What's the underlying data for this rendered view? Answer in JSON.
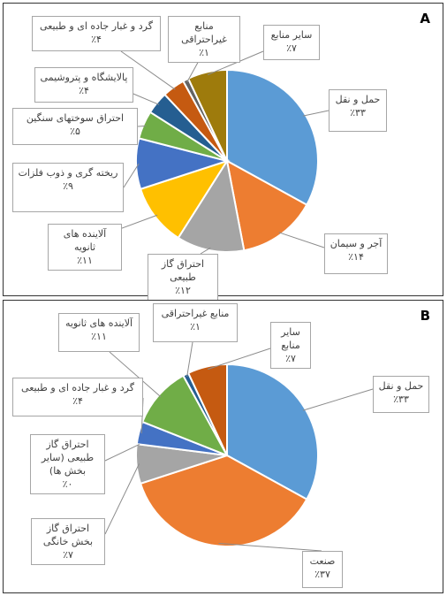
{
  "panels": [
    {
      "letter": "A",
      "chart_data": {
        "type": "pie",
        "start_angle_deg": 0,
        "direction": "clockwise",
        "slices": [
          {
            "label": "حمل و نقل",
            "value": 33,
            "display": "٪۳۳",
            "color": "#5b9bd5"
          },
          {
            "label": "آجر و سیمان",
            "value": 14,
            "display": "٪۱۴",
            "color": "#ed7d31"
          },
          {
            "label": "احتراق گاز طبیعی",
            "value": 12,
            "display": "٪۱۲",
            "color": "#a5a5a5"
          },
          {
            "label": "آلاینده های ثانویه",
            "value": 11,
            "display": "٪۱۱",
            "color": "#ffc000"
          },
          {
            "label": "ریخته گری و ذوب فلزات",
            "value": 9,
            "display": "٪۹",
            "color": "#4472c4"
          },
          {
            "label": "احتراق سوختهای سنگین",
            "value": 5,
            "display": "٪۵",
            "color": "#70ad47"
          },
          {
            "label": "پالایشگاه و پتروشیمی",
            "value": 4,
            "display": "٪۴",
            "color": "#255e91"
          },
          {
            "label": "گرد و غبار جاده ای و طبیعی",
            "value": 4,
            "display": "٪۴",
            "color": "#c55a11"
          },
          {
            "label": "منابع غیراحتراقی",
            "value": 1,
            "display": "٪۱",
            "color": "#636363"
          },
          {
            "label": "سایر منابع",
            "value": 7,
            "display": "٪۷",
            "color": "#9e7b0c"
          }
        ]
      }
    },
    {
      "letter": "B",
      "chart_data": {
        "type": "pie",
        "start_angle_deg": 0,
        "direction": "clockwise",
        "slices": [
          {
            "label": "حمل و نقل",
            "value": 33,
            "display": "٪۳۳",
            "color": "#5b9bd5"
          },
          {
            "label": "صنعت",
            "value": 37,
            "display": "٪۳۷",
            "color": "#ed7d31"
          },
          {
            "label": "احتراق گاز بخش خانگی",
            "value": 7,
            "display": "٪۷",
            "color": "#a5a5a5"
          },
          {
            "label": "احتراق گاز طبیعی (سایر بخش ها)",
            "value": 0,
            "display": "٪۰",
            "color": "#ffc000"
          },
          {
            "label": "گرد و غبار جاده ای و طبیعی",
            "value": 4,
            "display": "٪۴",
            "color": "#4472c4"
          },
          {
            "label": "آلاینده های ثانویه",
            "value": 11,
            "display": "٪۱۱",
            "color": "#70ad47"
          },
          {
            "label": "منابع غیراحتراقی",
            "value": 1,
            "display": "٪۱",
            "color": "#255e91"
          },
          {
            "label": "سایر منابع",
            "value": 7,
            "display": "٪۷",
            "color": "#c55a11"
          }
        ]
      }
    }
  ]
}
